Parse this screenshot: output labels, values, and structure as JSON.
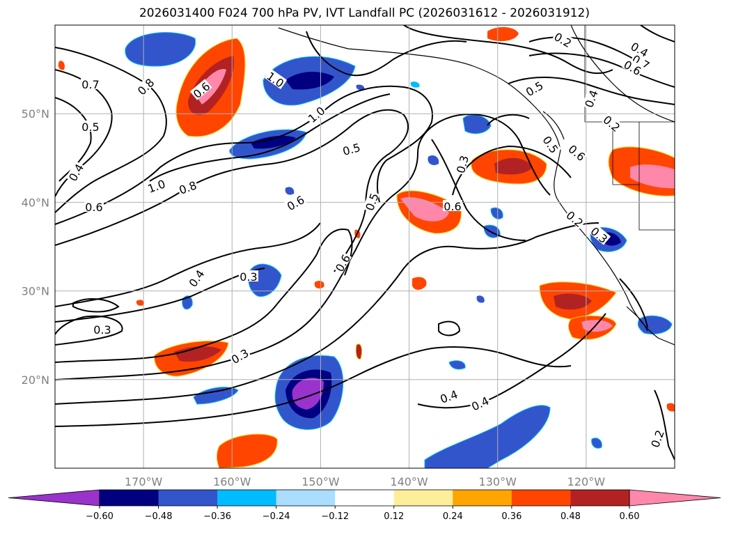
{
  "title": "2026031400 F024 700 hPa PV, IVT Landfall PC (2026031612 - 2026031912)",
  "map": {
    "lon_range": [
      -180,
      -110
    ],
    "lat_range": [
      10,
      60
    ],
    "lat_ticks": [
      {
        "value": 50,
        "label": "50°N"
      },
      {
        "value": 40,
        "label": "40°N"
      },
      {
        "value": 30,
        "label": "30°N"
      },
      {
        "value": 20,
        "label": "20°N"
      }
    ],
    "lon_ticks": [
      {
        "value": -170,
        "label": "170°W"
      },
      {
        "value": -160,
        "label": "160°W"
      },
      {
        "value": -150,
        "label": "150°W"
      },
      {
        "value": -140,
        "label": "140°W"
      },
      {
        "value": -130,
        "label": "130°W"
      },
      {
        "value": -120,
        "label": "120°W"
      }
    ],
    "grid": true,
    "contour_labels": [
      "0.7",
      "0.5",
      "0.4",
      "0.6",
      "0.8",
      "0.6",
      "1.0",
      "0.8",
      "0.6",
      "1.0",
      "1.0",
      "0.5",
      "0.6",
      "0.4",
      "0.3",
      "0.5",
      "0.3",
      "0.6",
      "0.4",
      "0.3",
      "0.4",
      "0.2",
      "0.2",
      "0.4",
      "0.7",
      "0.6",
      "0.5",
      "0.4",
      "0.2",
      "0.3",
      "0.5",
      "0.2",
      "0.6",
      "0.3"
    ]
  },
  "colorbar": {
    "colors": [
      "#9933cc",
      "#000080",
      "#3355cc",
      "#00bbff",
      "#aaddff",
      "#ffffff",
      "#ffee99",
      "#ffa500",
      "#ff4500",
      "#b22222",
      "#ff88aa"
    ],
    "tick_labels": [
      "−0.60",
      "−0.48",
      "−0.36",
      "−0.24",
      "−0.12",
      "0.12",
      "0.24",
      "0.36",
      "0.48",
      "0.60"
    ]
  }
}
